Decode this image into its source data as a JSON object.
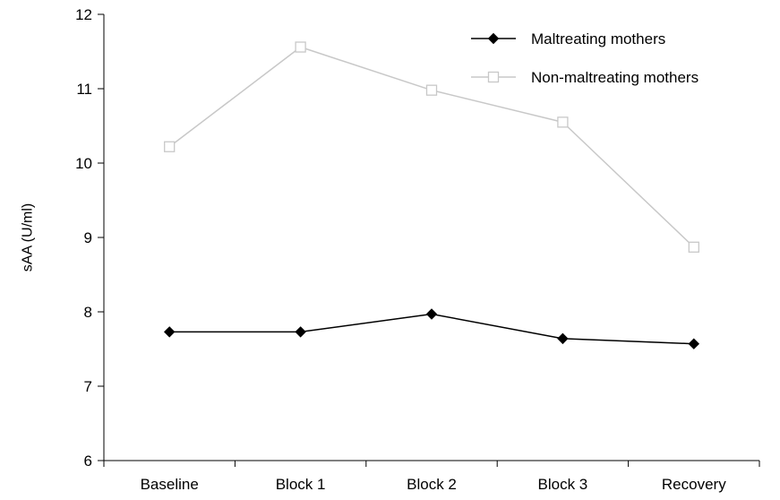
{
  "chart_data": {
    "type": "line",
    "title": "",
    "xlabel": "",
    "ylabel": "sAA (U/ml)",
    "categories": [
      "Baseline",
      "Block 1",
      "Block 2",
      "Block 3",
      "Recovery"
    ],
    "ylim": [
      6,
      12
    ],
    "yticks": [
      "6",
      "7",
      "8",
      "9",
      "10",
      "11",
      "12"
    ],
    "grid": false,
    "legend_position": "top-right",
    "series": [
      {
        "name": "Maltreating mothers",
        "values": [
          7.73,
          7.73,
          7.97,
          7.64,
          7.57
        ],
        "color": "#000000",
        "marker": "diamond-filled"
      },
      {
        "name": "Non-maltreating mothers",
        "values": [
          10.22,
          11.56,
          10.98,
          10.55,
          8.87
        ],
        "color": "#c8c8c8",
        "marker": "square-open"
      }
    ]
  }
}
